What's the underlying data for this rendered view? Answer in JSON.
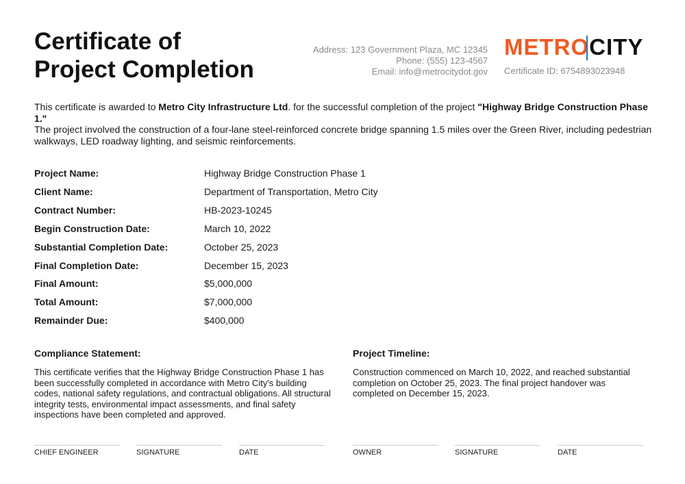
{
  "title_line1": "Certificate of",
  "title_line2": "Project Completion",
  "contact": {
    "address": "Address: 123 Government Plaza, MC 12345",
    "phone": "Phone: (555) 123-4567",
    "email": "Email: info@metrocitydot.gov"
  },
  "logo": {
    "part1": "METRO",
    "part2": "CITY",
    "brand_color": "#f05a22",
    "accent_color": "#2b6fb3"
  },
  "certificate_id": "Certificate ID: 6754893023948",
  "intro": {
    "pre": "This certificate is awarded to ",
    "company": "Metro City Infrastructure Ltd",
    "mid": ". for the successful completion of the project ",
    "project": "\"Highway Bridge Construction Phase 1.\""
  },
  "description": "The project involved the construction of a four-lane steel-reinforced concrete bridge spanning 1.5 miles over the Green River, including pedestrian walkways, LED roadway lighting, and seismic reinforcements.",
  "details": [
    {
      "k": "Project Name:",
      "v": "Highway Bridge Construction Phase 1"
    },
    {
      "k": "Client Name:",
      "v": "Department of Transportation, Metro City"
    },
    {
      "k": "Contract Number:",
      "v": "HB-2023-10245"
    },
    {
      "k": "Begin Construction Date:",
      "v": "March 10, 2022"
    },
    {
      "k": "Substantial Completion Date:",
      "v": "October 25, 2023"
    },
    {
      "k": "Final Completion Date:",
      "v": "December 15, 2023"
    },
    {
      "k": "Final Amount:",
      "v": "$5,000,000"
    },
    {
      "k": "Total Amount:",
      "v": "$7,000,000"
    },
    {
      "k": "Remainder Due:",
      "v": "$400,000"
    }
  ],
  "compliance": {
    "title": "Compliance Statement:",
    "text": "This certificate verifies that the Highway Bridge Construction Phase 1 has been successfully completed in accordance with Metro City's building codes, national safety regulations, and contractual obligations. All structural integrity tests, environmental impact assessments, and final safety inspections have been completed and approved."
  },
  "timeline": {
    "title": "Project Timeline:",
    "text": "Construction commenced on March 10, 2022, and reached substantial completion on October 25, 2023. The final project handover was completed on December 15, 2023."
  },
  "signatures": [
    "CHIEF ENGINEER",
    "SIGNATURE",
    "DATE",
    "OWNER",
    "SIGNATURE",
    "DATE"
  ]
}
